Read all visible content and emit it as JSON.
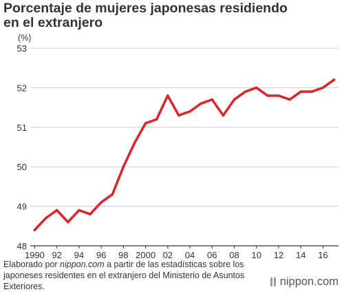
{
  "title_lines": [
    "Porcentaje de mujeres japonesas residiendo",
    "en el extranjero"
  ],
  "source": {
    "prefix": "Elaborado por ",
    "site": "nippon.com",
    "suffix": " a partir de las estadísticas sobre los japoneses residentes en el extranjero del Ministerio de Asuntos Exteriores."
  },
  "brand": "nippon.com",
  "chart_data": {
    "type": "line",
    "unit_label": "(%)",
    "x": [
      1990,
      1991,
      1992,
      1993,
      1994,
      1995,
      1996,
      1997,
      1998,
      1999,
      2000,
      2001,
      2002,
      2003,
      2004,
      2005,
      2006,
      2007,
      2008,
      2009,
      2010,
      2011,
      2012,
      2013,
      2014,
      2015,
      2016,
      2017
    ],
    "series": [
      {
        "values": [
          48.4,
          48.7,
          48.9,
          48.6,
          48.9,
          48.8,
          49.1,
          49.3,
          50.0,
          50.6,
          51.1,
          51.2,
          51.8,
          51.3,
          51.4,
          51.6,
          51.7,
          51.3,
          51.7,
          51.9,
          52.0,
          51.8,
          51.8,
          51.7,
          51.9,
          51.9,
          52.0,
          52.2
        ],
        "color": "#d7282f"
      }
    ],
    "ylim": [
      48,
      53
    ],
    "yticks": [
      48,
      49,
      50,
      51,
      52,
      53
    ],
    "xticks": [
      {
        "value": 1990,
        "label": "1990"
      },
      {
        "value": 1992,
        "label": "92"
      },
      {
        "value": 1994,
        "label": "94"
      },
      {
        "value": 1996,
        "label": "96"
      },
      {
        "value": 1998,
        "label": "98"
      },
      {
        "value": 2000,
        "label": "2000"
      },
      {
        "value": 2002,
        "label": "02"
      },
      {
        "value": 2004,
        "label": "04"
      },
      {
        "value": 2006,
        "label": "06"
      },
      {
        "value": 2008,
        "label": "08"
      },
      {
        "value": 2010,
        "label": "10"
      },
      {
        "value": 2012,
        "label": "12"
      },
      {
        "value": 2014,
        "label": "14"
      },
      {
        "value": 2016,
        "label": "16"
      }
    ],
    "grid": true,
    "grid_color": "#cccccc",
    "axis_color": "#333333"
  }
}
